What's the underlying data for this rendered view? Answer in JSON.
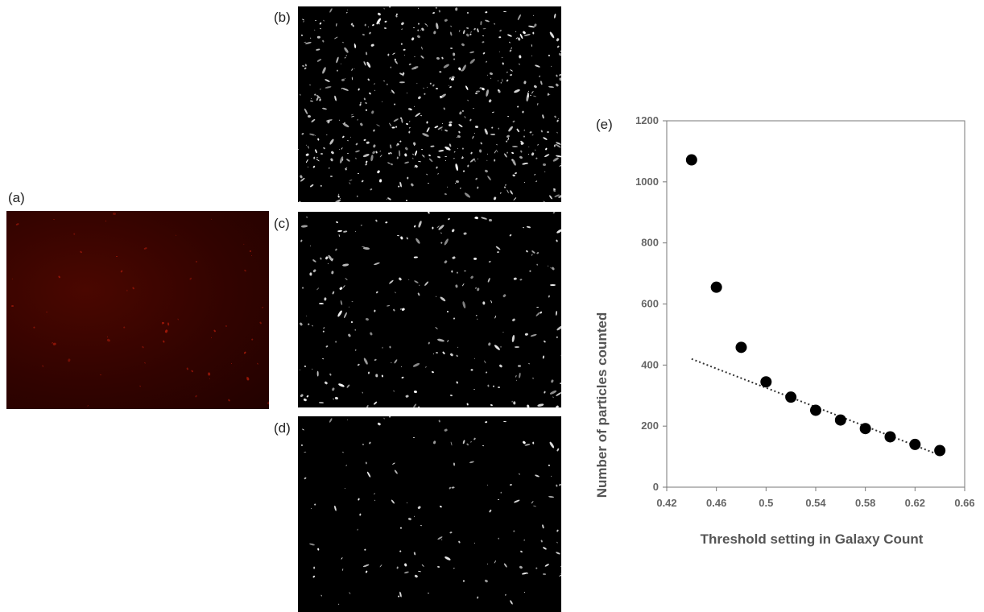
{
  "panels": {
    "a": "(a)",
    "b": "(b)",
    "c": "(c)",
    "d": "(d)",
    "e": "(e)"
  },
  "colors": {
    "fluorescence": "#3a0500",
    "marker": "#000000",
    "trendline": "#333333"
  },
  "chart_data": {
    "type": "scatter",
    "xlabel": "Threshold setting in Galaxy Count",
    "ylabel": "Number of particles counted",
    "xlim": [
      0.42,
      0.66
    ],
    "ylim": [
      0,
      1200
    ],
    "xticks": [
      "0.42",
      "0.46",
      "0.5",
      "0.54",
      "0.58",
      "0.62",
      "0.66"
    ],
    "yticks": [
      "0",
      "200",
      "400",
      "600",
      "800",
      "1000",
      "1200"
    ],
    "x": [
      0.44,
      0.46,
      0.48,
      0.5,
      0.52,
      0.54,
      0.56,
      0.58,
      0.6,
      0.62,
      0.64
    ],
    "y": [
      1072,
      655,
      458,
      345,
      295,
      252,
      220,
      192,
      165,
      140,
      120
    ],
    "trendline": {
      "style": "dotted",
      "x": [
        0.44,
        0.64
      ],
      "y": [
        420,
        105
      ]
    },
    "grid": false
  }
}
